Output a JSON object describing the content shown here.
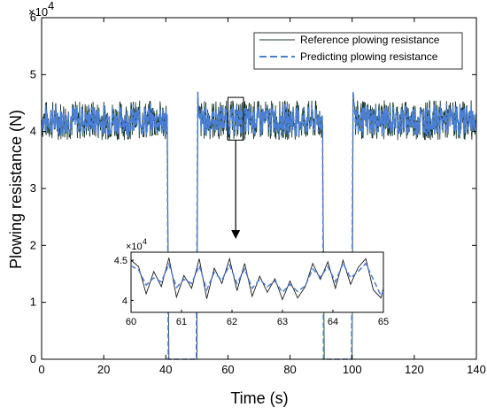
{
  "chart_data": {
    "type": "line",
    "xlabel": "Time (s)",
    "ylabel": "Plowing resistance (N)",
    "xlim": [
      0,
      140
    ],
    "ylim": [
      0,
      60000
    ],
    "y_exponent_label": "×10",
    "y_exponent_power": "4",
    "x_ticks": [
      "0",
      "20",
      "40",
      "60",
      "80",
      "100",
      "120",
      "140"
    ],
    "y_ticks": [
      "0",
      "1",
      "2",
      "3",
      "4",
      "5",
      "6"
    ],
    "grid": false,
    "legend_position": "top-right",
    "segments": [
      {
        "x_start": 0,
        "x_end": 40.5,
        "level": 42000,
        "noise": 3500
      },
      {
        "x_start": 50.5,
        "x_end": 90.5,
        "level": 42000,
        "noise": 3500
      },
      {
        "x_start": 101,
        "x_end": 140,
        "level": 42000,
        "noise": 3500
      }
    ],
    "gaps": [
      {
        "x_start": 40.5,
        "x_end": 50.5,
        "drop_start": 41,
        "rise_end": 50
      },
      {
        "x_start": 90.5,
        "x_end": 101,
        "drop_start": 91,
        "rise_end": 100
      }
    ],
    "series": [
      {
        "name": "Reference plowing resistance",
        "color": "#1a3a2a",
        "style": "solid"
      },
      {
        "name": "Predicting plowing resistance",
        "color": "#4a7fd6",
        "style": "dashed"
      }
    ],
    "inset": {
      "xlim": [
        60,
        65
      ],
      "ylim": [
        38500,
        46000
      ],
      "x_ticks": [
        "60",
        "61",
        "62",
        "63",
        "64",
        "65"
      ],
      "y_ticks": [
        "4",
        "4.5"
      ],
      "y_exponent_label": "×10",
      "y_exponent_power": "4",
      "reference": [
        [
          60.0,
          45000
        ],
        [
          60.15,
          44200
        ],
        [
          60.3,
          40800
        ],
        [
          60.45,
          43600
        ],
        [
          60.6,
          41700
        ],
        [
          60.75,
          45300
        ],
        [
          60.9,
          40400
        ],
        [
          61.05,
          43100
        ],
        [
          61.2,
          41500
        ],
        [
          61.35,
          45200
        ],
        [
          61.5,
          40200
        ],
        [
          61.65,
          44000
        ],
        [
          61.8,
          42100
        ],
        [
          61.95,
          45200
        ],
        [
          62.1,
          41200
        ],
        [
          62.25,
          44600
        ],
        [
          62.4,
          40500
        ],
        [
          62.55,
          43000
        ],
        [
          62.7,
          41000
        ],
        [
          62.85,
          42700
        ],
        [
          63.0,
          40100
        ],
        [
          63.15,
          42400
        ],
        [
          63.3,
          40300
        ],
        [
          63.45,
          41700
        ],
        [
          63.6,
          44600
        ],
        [
          63.75,
          42600
        ],
        [
          63.9,
          44800
        ],
        [
          64.05,
          41500
        ],
        [
          64.2,
          45000
        ],
        [
          64.35,
          42000
        ],
        [
          64.5,
          44100
        ],
        [
          64.65,
          45200
        ],
        [
          64.8,
          41300
        ],
        [
          64.95,
          40300
        ],
        [
          65.0,
          41500
        ]
      ],
      "predicted": [
        [
          60.0,
          44300
        ],
        [
          60.15,
          43800
        ],
        [
          60.3,
          41900
        ],
        [
          60.45,
          42800
        ],
        [
          60.6,
          42300
        ],
        [
          60.75,
          44500
        ],
        [
          60.9,
          41600
        ],
        [
          61.05,
          42600
        ],
        [
          61.2,
          42100
        ],
        [
          61.35,
          44300
        ],
        [
          61.5,
          41300
        ],
        [
          61.65,
          43500
        ],
        [
          61.8,
          42500
        ],
        [
          61.95,
          44400
        ],
        [
          62.1,
          42100
        ],
        [
          62.25,
          43900
        ],
        [
          62.4,
          41500
        ],
        [
          62.55,
          42600
        ],
        [
          62.7,
          41700
        ],
        [
          62.85,
          42400
        ],
        [
          63.0,
          41000
        ],
        [
          63.15,
          42000
        ],
        [
          63.3,
          41100
        ],
        [
          63.45,
          41800
        ],
        [
          63.6,
          43900
        ],
        [
          63.75,
          42900
        ],
        [
          63.9,
          44200
        ],
        [
          64.05,
          42300
        ],
        [
          64.2,
          44600
        ],
        [
          64.35,
          42800
        ],
        [
          64.5,
          43600
        ],
        [
          64.65,
          44600
        ],
        [
          64.8,
          42600
        ],
        [
          64.95,
          40600
        ],
        [
          65.0,
          41100
        ]
      ]
    }
  }
}
